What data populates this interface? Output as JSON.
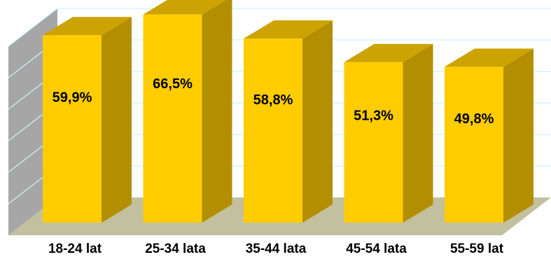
{
  "chart_data": {
    "type": "bar",
    "style": "3d",
    "categories": [
      "18-24 lat",
      "25-34 lata",
      "35-44 lata",
      "45-54 lata",
      "55-59 lat"
    ],
    "values": [
      59.9,
      66.5,
      58.8,
      51.3,
      49.8
    ],
    "value_labels": [
      "59,9%",
      "66,5%",
      "58,8%",
      "51,3%",
      "49,8%"
    ],
    "ylim": [
      0,
      70
    ],
    "grid": true,
    "legend": "none",
    "colors": {
      "bar_front": "#FFCC00",
      "bar_side": "#B38F00",
      "bar_top": "#CCA300",
      "wall": "#A6A6A6",
      "floor": "#C2C09E",
      "gridline": "#CCF2FF"
    }
  }
}
